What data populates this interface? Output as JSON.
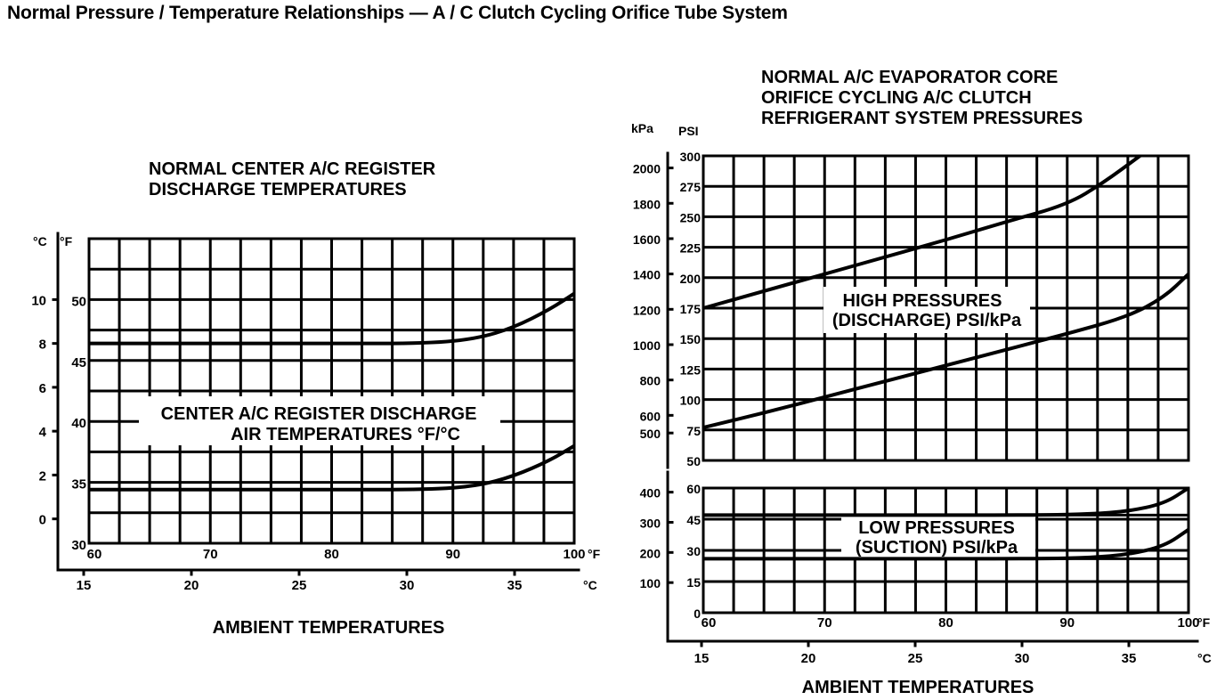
{
  "page_title": "Normal Pressure / Temperature Relationships — A / C Clutch Cycling Orifice Tube System",
  "colors": {
    "ink": "#000000",
    "paper": "#ffffff"
  },
  "chart_data": [
    {
      "type": "line",
      "title_lines": [
        "NORMAL CENTER A/C REGISTER",
        "DISCHARGE TEMPERATURES"
      ],
      "inner_label_lines": [
        "CENTER A/C REGISTER DISCHARGE",
        "AIR TEMPERATURES °F/°C"
      ],
      "xlabel": "AMBIENT TEMPERATURES",
      "x_unit_f": "°F",
      "x_unit_c": "°C",
      "y_unit_f": "°F",
      "y_unit_c": "°C",
      "xlim_f": [
        60,
        100
      ],
      "ylim_f": [
        30,
        55
      ],
      "x_ticks_f": [
        "60",
        "70",
        "80",
        "90",
        "100"
      ],
      "x_ticks_c": [
        "15",
        "20",
        "25",
        "30",
        "35"
      ],
      "y_ticks_f": [
        "30",
        "35",
        "40",
        "45",
        "50"
      ],
      "y_ticks_c": [
        "0",
        "2",
        "4",
        "6",
        "8",
        "10"
      ],
      "grid": true,
      "series": [
        {
          "name": "upper",
          "x": [
            60,
            70,
            80,
            88,
            92,
            95,
            98,
            100
          ],
          "y": [
            46.4,
            46.4,
            46.4,
            46.4,
            46.8,
            47.7,
            49.2,
            50.5
          ]
        },
        {
          "name": "lower",
          "x": [
            60,
            70,
            80,
            88,
            92,
            95,
            98,
            100
          ],
          "y": [
            34.4,
            34.4,
            34.4,
            34.4,
            34.7,
            35.5,
            36.8,
            38.0
          ]
        }
      ]
    },
    {
      "type": "line",
      "title_lines": [
        "NORMAL A/C EVAPORATOR CORE",
        "ORIFICE CYCLING A/C CLUTCH",
        "REFRIGERANT SYSTEM PRESSURES"
      ],
      "inner_label_lines": [
        "HIGH PRESSURES",
        "(DISCHARGE) PSI/kPa"
      ],
      "y_unit_kpa": "kPa",
      "y_unit_psi": "PSI",
      "xlim_f": [
        60,
        100
      ],
      "ylim_psi": [
        50,
        300
      ],
      "y_ticks_psi": [
        "50",
        "75",
        "100",
        "125",
        "150",
        "175",
        "200",
        "225",
        "250",
        "275",
        "300"
      ],
      "y_ticks_kpa": [
        "500",
        "600",
        "800",
        "1000",
        "1200",
        "1400",
        "1600",
        "1800",
        "2000"
      ],
      "grid": true,
      "series": [
        {
          "name": "upper",
          "x": [
            60,
            65,
            70,
            75,
            80,
            85,
            90,
            93,
            96
          ],
          "y": [
            175,
            189,
            203,
            217,
            231,
            246,
            260,
            278,
            300
          ]
        },
        {
          "name": "lower",
          "x": [
            60,
            65,
            70,
            75,
            80,
            85,
            90,
            95,
            98,
            100
          ],
          "y": [
            77,
            89,
            102,
            115,
            128,
            141,
            154,
            168,
            184,
            203
          ]
        }
      ]
    },
    {
      "type": "line",
      "inner_label_lines": [
        "LOW PRESSURES",
        "(SUCTION) PSI/kPa"
      ],
      "xlabel": "AMBIENT TEMPERATURES",
      "x_unit_f": "°F",
      "x_unit_c": "°C",
      "xlim_f": [
        60,
        100
      ],
      "ylim_psi": [
        0,
        60
      ],
      "y_ticks_psi": [
        "0",
        "15",
        "30",
        "45",
        "60"
      ],
      "y_ticks_kpa": [
        "100",
        "200",
        "300",
        "400"
      ],
      "x_ticks_f": [
        "60",
        "70",
        "80",
        "90",
        "100"
      ],
      "x_ticks_c": [
        "15",
        "20",
        "25",
        "30",
        "35"
      ],
      "grid": true,
      "series": [
        {
          "name": "upper",
          "x": [
            60,
            70,
            80,
            88,
            92,
            95,
            98,
            100
          ],
          "y": [
            47,
            47,
            47,
            47,
            47.5,
            48.8,
            52.5,
            60
          ]
        },
        {
          "name": "lower",
          "x": [
            60,
            70,
            80,
            88,
            92,
            95,
            98,
            100
          ],
          "y": [
            26,
            26,
            26,
            26,
            26.5,
            28,
            32,
            40
          ]
        }
      ]
    }
  ]
}
